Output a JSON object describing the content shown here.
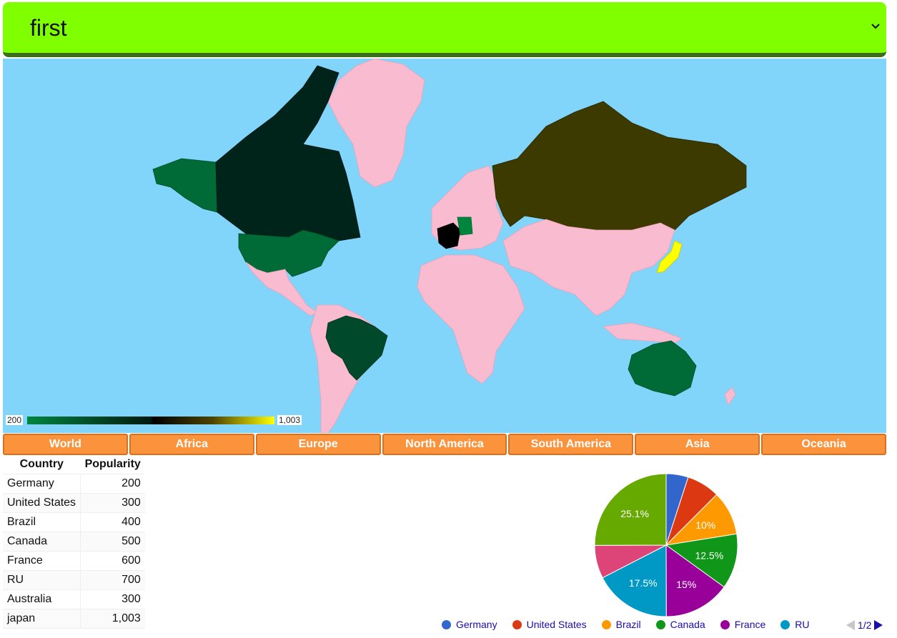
{
  "selector": {
    "value": "first"
  },
  "legend": {
    "min": "200",
    "max": "1,003"
  },
  "regions": [
    "World",
    "Africa",
    "Europe",
    "North America",
    "South America",
    "Asia",
    "Oceania"
  ],
  "table": {
    "headers": [
      "Country",
      "Popularity"
    ],
    "rows": [
      [
        "Germany",
        "200"
      ],
      [
        "United States",
        "300"
      ],
      [
        "Brazil",
        "400"
      ],
      [
        "Canada",
        "500"
      ],
      [
        "France",
        "600"
      ],
      [
        "RU",
        "700"
      ],
      [
        "Australia",
        "300"
      ],
      [
        "japan",
        "1,003"
      ]
    ]
  },
  "colors": {
    "ocean": "#81d4fa",
    "land": "#f8bbd0",
    "selector_bg": "#7fff00",
    "region_button": "#fb923c"
  },
  "map_regions": {
    "Germany": "#00853f",
    "United States": "#006b36",
    "Brazil": "#00492a",
    "Canada": "#00241a",
    "France": "#000000",
    "RU": "#3d3a00",
    "Australia": "#006b36",
    "japan": "#ffff00"
  },
  "chart_data": {
    "type": "pie",
    "series": [
      {
        "name": "Germany",
        "value": 200,
        "color": "#3366cc"
      },
      {
        "name": "United States",
        "value": 300,
        "color": "#dc3912"
      },
      {
        "name": "Brazil",
        "value": 400,
        "color": "#ff9900"
      },
      {
        "name": "Canada",
        "value": 500,
        "color": "#109618"
      },
      {
        "name": "France",
        "value": 600,
        "color": "#990099"
      },
      {
        "name": "RU",
        "value": 700,
        "color": "#0099c6"
      },
      {
        "name": "Australia",
        "value": 300,
        "color": "#dd4477"
      },
      {
        "name": "japan",
        "value": 1003,
        "color": "#66aa00"
      }
    ],
    "slice_labels": [
      "",
      "",
      "10%",
      "12.5%",
      "15%",
      "17.5%",
      "",
      "25.1%"
    ],
    "legend_visible": [
      "Germany",
      "United States",
      "Brazil",
      "Canada",
      "France",
      "RU"
    ],
    "pager": "1/2"
  }
}
